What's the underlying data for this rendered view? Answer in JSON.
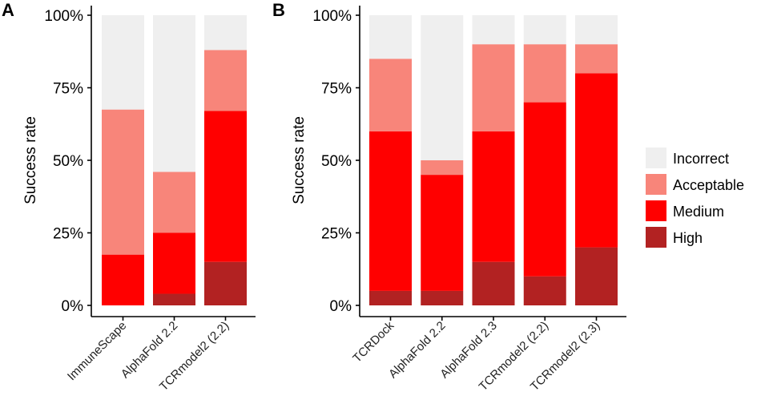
{
  "chart_data": [
    {
      "type": "bar",
      "stacked": true,
      "panel_label": "A",
      "ylabel": "Success rate",
      "xlabel": "",
      "ylim": [
        0,
        100
      ],
      "yticks": [
        "0%",
        "25%",
        "50%",
        "75%",
        "100%"
      ],
      "categories": [
        "ImmuneScape",
        "AlphaFold 2.2",
        "TCRmodel2 (2.2)"
      ],
      "series": [
        {
          "name": "High",
          "values": [
            0,
            4,
            15
          ]
        },
        {
          "name": "Medium",
          "values": [
            17.5,
            21,
            52
          ]
        },
        {
          "name": "Acceptable",
          "values": [
            50,
            21,
            21
          ]
        },
        {
          "name": "Incorrect",
          "values": [
            32.5,
            54,
            12
          ]
        }
      ]
    },
    {
      "type": "bar",
      "stacked": true,
      "panel_label": "B",
      "ylabel": "Success rate",
      "xlabel": "",
      "ylim": [
        0,
        100
      ],
      "yticks": [
        "0%",
        "25%",
        "50%",
        "75%",
        "100%"
      ],
      "categories": [
        "TCRDock",
        "AlphaFold 2.2",
        "AlphaFold 2.3",
        "TCRmodel2 (2.2)",
        "TCRmodel2 (2.3)"
      ],
      "series": [
        {
          "name": "High",
          "values": [
            5,
            5,
            15,
            10,
            20
          ]
        },
        {
          "name": "Medium",
          "values": [
            55,
            40,
            45,
            60,
            60
          ]
        },
        {
          "name": "Acceptable",
          "values": [
            25,
            5,
            30,
            20,
            10
          ]
        },
        {
          "name": "Incorrect",
          "values": [
            15,
            50,
            10,
            10,
            10
          ]
        }
      ]
    }
  ],
  "legend": {
    "items": [
      {
        "label": "Incorrect",
        "color": "#efefef"
      },
      {
        "label": "Acceptable",
        "color": "#f8857a"
      },
      {
        "label": "Medium",
        "color": "#ff0000"
      },
      {
        "label": "High",
        "color": "#b22222"
      }
    ]
  },
  "colors": {
    "High": "#b22222",
    "Medium": "#ff0000",
    "Acceptable": "#f8857a",
    "Incorrect": "#efefef"
  }
}
